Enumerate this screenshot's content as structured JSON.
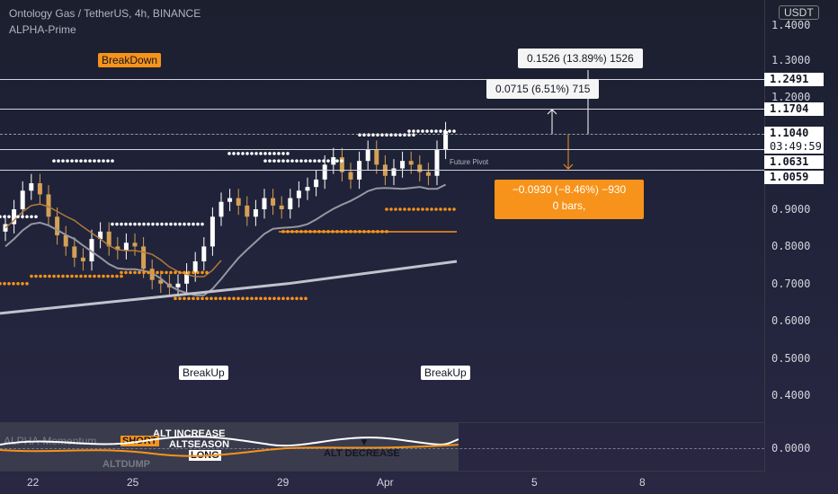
{
  "header": {
    "symbol": "Ontology Gas / TetherUS, 4h, BINANCE",
    "indicator_name": "ALPHA-Prime"
  },
  "price_scale": {
    "currency": "USDT",
    "labels": [
      "1.4000",
      "1.3000",
      "1.2000",
      "0.9000",
      "0.8000",
      "0.7000",
      "0.6000",
      "0.5000",
      "0.4000"
    ],
    "level_boxes": [
      "1.2491",
      "1.1704",
      "1.1040",
      "1.0631",
      "1.0059"
    ],
    "countdown": "03:49:59",
    "oscillator_zero": "0.0000"
  },
  "time_axis": [
    "22",
    "25",
    "29",
    "Apr",
    "5",
    "8"
  ],
  "annotations": {
    "breakdown": "BreakDown",
    "breakup_1": "BreakUp",
    "breakup_2": "BreakUp",
    "future_pivot": "Future Pivot"
  },
  "measurements": {
    "up_large": "0.1526 (13.89%) 1526",
    "up_small": "0.0715 (6.51%) 715",
    "down_line1": "−0.0930 (−8.46%) −930",
    "down_line2": "0 bars,"
  },
  "oscillator": {
    "title": "ALPHA-Momentum",
    "labels": [
      "ALT INCREASE",
      "ALTSEASON",
      "SHORT",
      "LONG",
      "ALTDUMP",
      "ALT DECREASE"
    ]
  },
  "colors": {
    "orange": "#f7931a",
    "white": "#ffffff",
    "background": "#1b1f2e",
    "up_candle": "#ffffff",
    "down_candle": "#d4a056"
  },
  "chart_data": {
    "type": "candlestick",
    "x_ticks": [
      "22",
      "25",
      "29",
      "Apr",
      "5",
      "8"
    ],
    "y_ticks": [
      0.4,
      0.5,
      0.6,
      0.7,
      0.8,
      0.9,
      1.0,
      1.1,
      1.2,
      1.3,
      1.4
    ],
    "ylim": [
      0.33,
      1.43
    ],
    "levels": [
      1.2491,
      1.1704,
      1.104,
      1.0631,
      1.0059
    ],
    "close_series": [
      0.86,
      0.9,
      0.95,
      0.97,
      0.94,
      0.88,
      0.83,
      0.8,
      0.77,
      0.76,
      0.82,
      0.84,
      0.8,
      0.79,
      0.81,
      0.8,
      0.74,
      0.71,
      0.7,
      0.69,
      0.7,
      0.73,
      0.76,
      0.8,
      0.88,
      0.92,
      0.93,
      0.91,
      0.88,
      0.9,
      0.93,
      0.91,
      0.9,
      0.93,
      0.95,
      0.96,
      0.98,
      1.02,
      1.04,
      1.0,
      0.98,
      1.03,
      1.06,
      1.02,
      0.99,
      1.01,
      1.03,
      1.02,
      1.0,
      0.99,
      1.06,
      1.11
    ]
  }
}
